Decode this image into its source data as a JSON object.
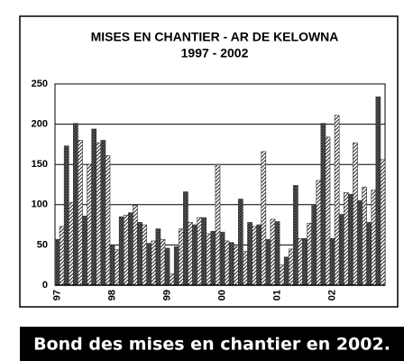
{
  "chart_data": {
    "type": "bar",
    "title": "MISES EN CHANTIER - AR DE KELOWNA",
    "subtitle": "1997 - 2002",
    "caption": "Bond des mises en chantier en 2002.",
    "categories": [
      "97",
      null,
      null,
      null,
      null,
      null,
      null,
      null,
      null,
      null,
      null,
      null,
      "98",
      null,
      null,
      null,
      null,
      null,
      null,
      null,
      null,
      null,
      null,
      null,
      "99",
      null,
      null,
      null,
      null,
      null,
      null,
      null,
      null,
      null,
      null,
      null,
      "00",
      null,
      null,
      null,
      null,
      null,
      null,
      null,
      null,
      null,
      null,
      null,
      "01",
      null,
      null,
      null,
      null,
      null,
      null,
      null,
      null,
      null,
      null,
      null,
      "02",
      null,
      null,
      null,
      null,
      null,
      null,
      null,
      null,
      null,
      null,
      null
    ],
    "values": [
      57,
      73,
      173,
      103,
      201,
      180,
      86,
      150,
      194,
      177,
      180,
      161,
      50,
      44,
      85,
      87,
      90,
      99,
      78,
      75,
      52,
      55,
      70,
      57,
      46,
      14,
      48,
      70,
      116,
      78,
      75,
      84,
      84,
      64,
      67,
      150,
      66,
      55,
      53,
      48,
      107,
      42,
      78,
      73,
      75,
      166,
      57,
      82,
      79,
      25,
      35,
      45,
      124,
      58,
      58,
      77,
      100,
      130,
      201,
      184,
      58,
      211,
      88,
      115,
      113,
      177,
      105,
      122,
      78,
      118,
      234,
      156
    ],
    "color": "#333333",
    "ylim": [
      0,
      250
    ],
    "yticks": [
      0,
      50,
      100,
      150,
      200,
      250
    ],
    "grid": true
  }
}
